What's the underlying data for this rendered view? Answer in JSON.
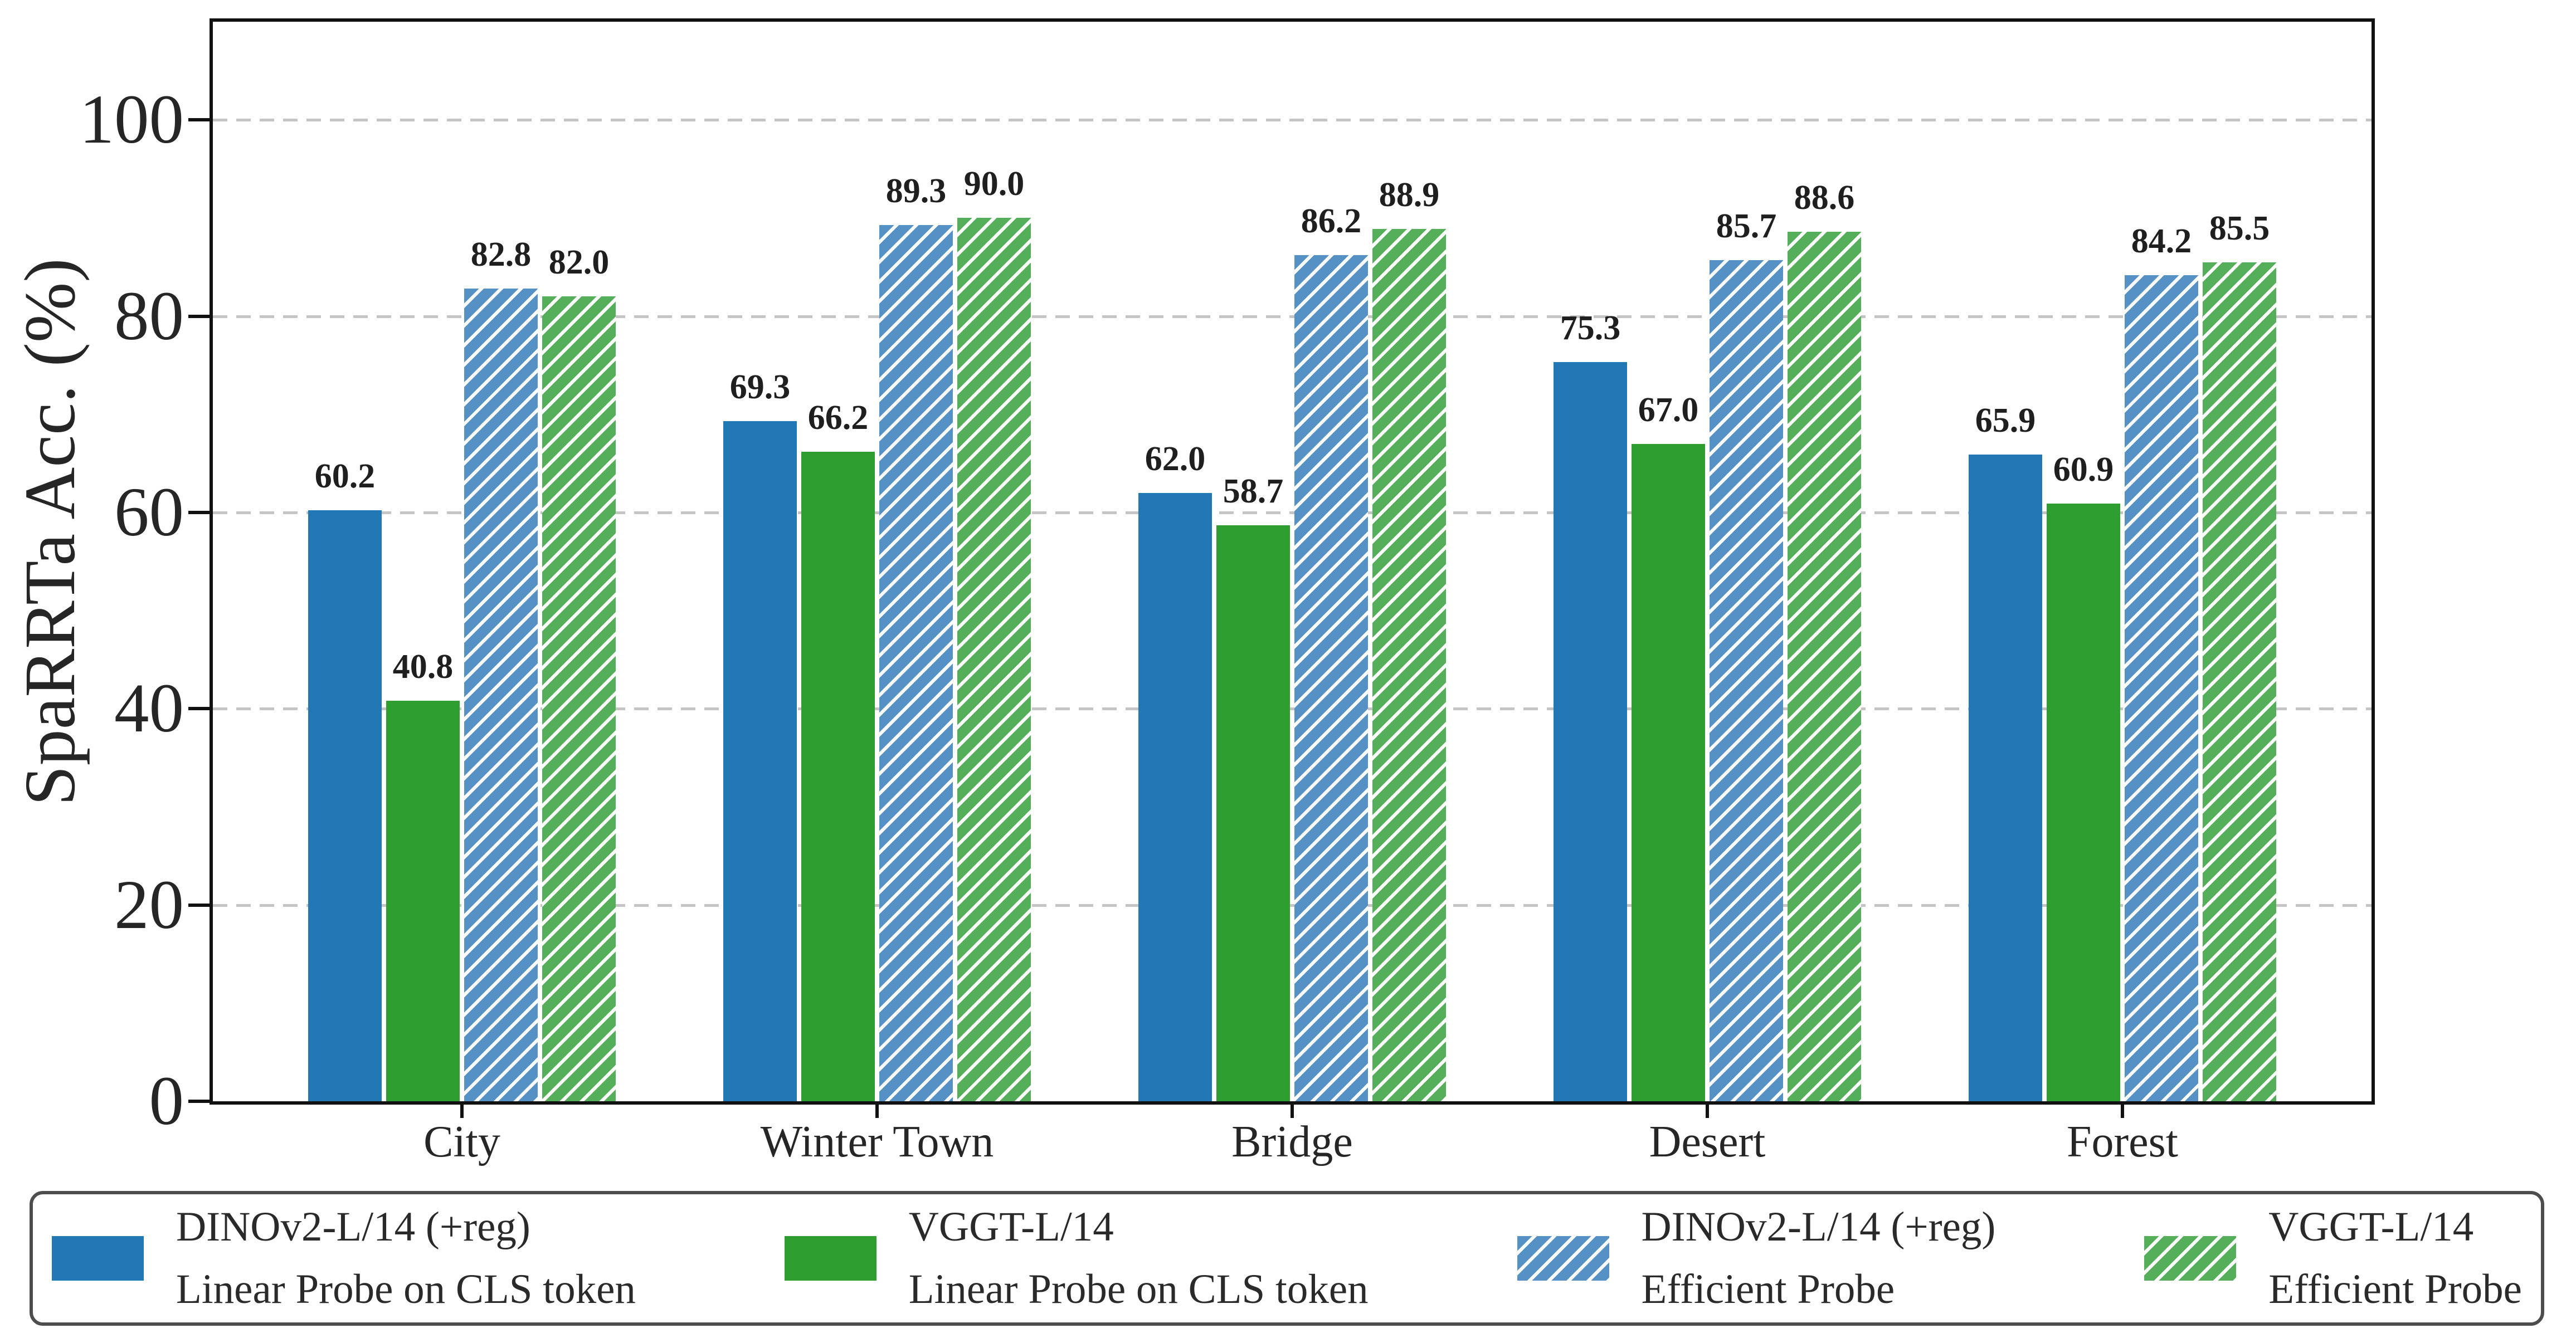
{
  "chart_data": {
    "type": "bar",
    "title": "",
    "xlabel": "",
    "ylabel": "SpaRRTa Acc. (%)",
    "categories": [
      "City",
      "Winter Town",
      "Bridge",
      "Desert",
      "Forest"
    ],
    "series": [
      {
        "name": "DINOv2-L/14 (+reg) Linear Probe on CLS token",
        "legend_line1": "DINOv2-L/14 (+reg)",
        "legend_line2": "Linear Probe on CLS token",
        "color": "#2277b5",
        "hatch": false,
        "values": [
          60.2,
          69.3,
          62.0,
          75.3,
          65.9
        ]
      },
      {
        "name": "VGGT-L/14 Linear Probe on CLS token",
        "legend_line1": "VGGT-L/14",
        "legend_line2": "Linear Probe on CLS token",
        "color": "#2e9e30",
        "hatch": false,
        "values": [
          40.8,
          66.2,
          58.7,
          67.0,
          60.9
        ]
      },
      {
        "name": "DINOv2-L/14 (+reg) Efficient Probe",
        "legend_line1": "DINOv2-L/14 (+reg)",
        "legend_line2": "Efficient Probe",
        "color": "#5591c5",
        "hatch": true,
        "values": [
          82.8,
          89.3,
          86.2,
          85.7,
          84.2
        ]
      },
      {
        "name": "VGGT-L/14 Efficient Probe",
        "legend_line1": "VGGT-L/14",
        "legend_line2": "Efficient Probe",
        "color": "#55af5a",
        "hatch": true,
        "values": [
          82.0,
          90.0,
          88.9,
          88.6,
          85.5
        ]
      }
    ],
    "y_ticks": [
      0,
      20,
      40,
      60,
      80,
      100
    ],
    "ylim": [
      0,
      110
    ],
    "grid": true,
    "grid_style": "dashed",
    "legend_position": "bottom",
    "value_label_decimals": 1
  },
  "style_colors": {
    "axis": "#111111",
    "grid": "#c4c4c4",
    "tick_text": "#262626",
    "value_text": "#1f1f1f",
    "legend_border": "#4d4d4d",
    "hatch_stripe": "#ffffff",
    "background": "#ffffff"
  }
}
